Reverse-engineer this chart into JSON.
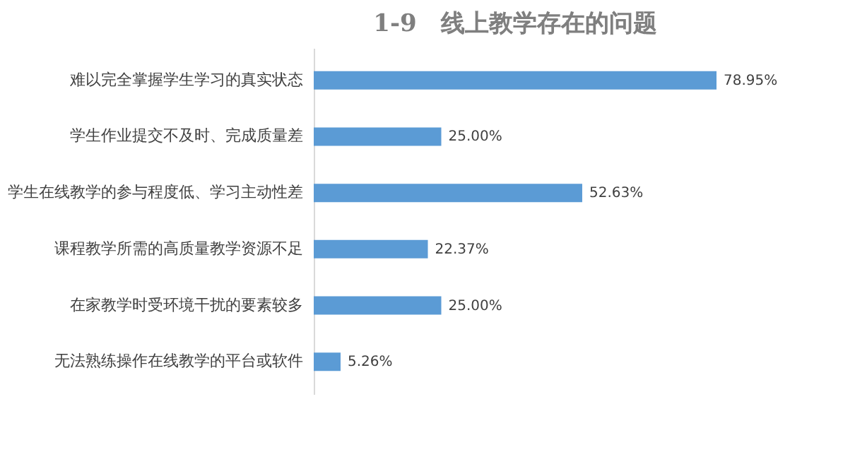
{
  "chart_data": {
    "type": "bar",
    "orientation": "horizontal",
    "title": "1-9　线上教学存在的问题",
    "categories": [
      "难以完全掌握学生学习的真实状态",
      "学生作业提交不及时、完成质量差",
      "学生在线教学的参与程度低、学习主动性差",
      "课程教学所需的高质量教学资源不足",
      "在家教学时受环境干扰的要素较多",
      "无法熟练操作在线教学的平台或软件"
    ],
    "values": [
      78.95,
      25.0,
      52.63,
      22.37,
      25.0,
      5.26
    ],
    "value_labels": [
      "78.95%",
      "25.00%",
      "52.63%",
      "22.37%",
      "25.00%",
      "5.26%"
    ],
    "color": "#5b9bd5",
    "grid": false
  }
}
